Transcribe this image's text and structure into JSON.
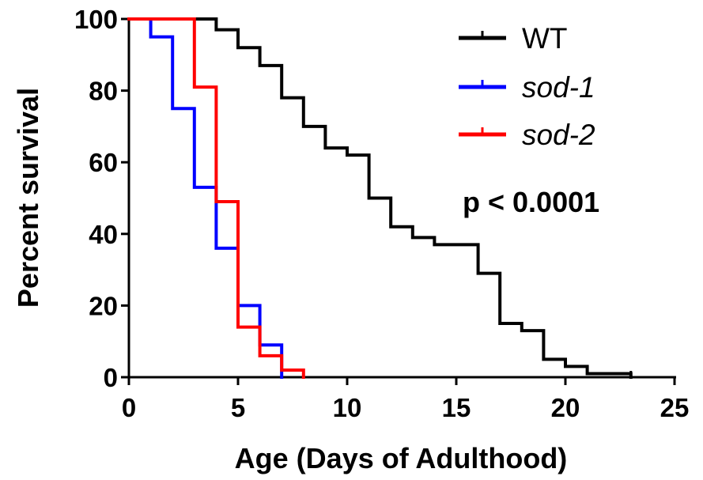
{
  "chart_data": {
    "type": "line",
    "step": true,
    "xlabel": "Age (Days of Adulthood)",
    "ylabel": "Percent survival",
    "xlim": [
      0,
      25
    ],
    "ylim": [
      0,
      100
    ],
    "xticks": [
      "0",
      "5",
      "10",
      "15",
      "20",
      "25"
    ],
    "yticks": [
      "0",
      "20",
      "40",
      "60",
      "80",
      "100"
    ],
    "grid": false,
    "legend_position": "top-right",
    "annotation": "p < 0.0001",
    "series": [
      {
        "name": "WT",
        "italic": false,
        "color": "#000000",
        "x": [
          0,
          4,
          5,
          6,
          7,
          8,
          9,
          10,
          11,
          12,
          13,
          14,
          16,
          17,
          18,
          19,
          20,
          21,
          23
        ],
        "y": [
          100,
          97,
          92,
          87,
          78,
          70,
          64,
          62,
          50,
          42,
          39,
          37,
          29,
          15,
          13,
          5,
          3,
          1,
          0
        ]
      },
      {
        "name": "sod-1",
        "italic": true,
        "color": "#0000ff",
        "x": [
          0,
          1,
          2,
          3,
          4,
          5,
          6,
          7
        ],
        "y": [
          100,
          95,
          75,
          53,
          36,
          20,
          9,
          0
        ]
      },
      {
        "name": "sod-2",
        "italic": true,
        "color": "#ff0000",
        "x": [
          0,
          3,
          4,
          5,
          6,
          7,
          8
        ],
        "y": [
          100,
          81,
          49,
          14,
          6,
          2,
          0
        ]
      }
    ]
  }
}
